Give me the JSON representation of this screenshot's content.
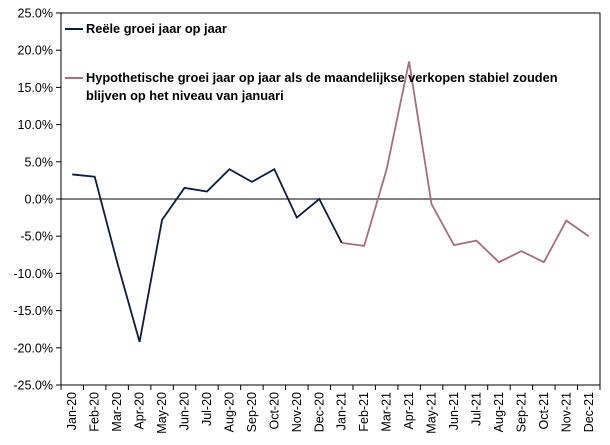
{
  "chart_data": {
    "type": "line",
    "categories": [
      "Jan-20",
      "Feb-20",
      "Mar-20",
      "Apr-20",
      "May-20",
      "Jun-20",
      "Jul-20",
      "Aug-20",
      "Sep-20",
      "Oct-20",
      "Nov-20",
      "Dec-20",
      "Jan-21",
      "Feb-21",
      "Mar-21",
      "Apr-21",
      "May-21",
      "Jun-21",
      "Jul-21",
      "Aug-21",
      "Sep-21",
      "Oct-21",
      "Nov-21",
      "Dec-21"
    ],
    "y_ticks": [
      "25.0%",
      "20.0%",
      "15.0%",
      "10.0%",
      "5.0%",
      "0.0%",
      "-5.0%",
      "-10.0%",
      "-15.0%",
      "-20.0%",
      "-25.0%"
    ],
    "ylim": [
      -25,
      25
    ],
    "grid": false,
    "legend_position": "top-left",
    "series": [
      {
        "name": "Reële groei jaar op jaar",
        "color": "#0d1b3d",
        "values": [
          3.3,
          3.0,
          -8.5,
          -19.2,
          -2.8,
          1.5,
          1.0,
          4.0,
          2.3,
          4.0,
          -2.5,
          0.0,
          -5.9,
          null,
          null,
          null,
          null,
          null,
          null,
          null,
          null,
          null,
          null,
          null
        ]
      },
      {
        "name": "Hypothetische groei jaar op jaar als de maandelijkse verkopen stabiel zouden blijven op het niveau van januari",
        "legend_lines": [
          "Hypothetische groei jaar op jaar als de maandelijkse verkopen stabiel zouden",
          "blijven op het niveau van januari"
        ],
        "color": "#a3707a",
        "values": [
          null,
          null,
          null,
          null,
          null,
          null,
          null,
          null,
          null,
          null,
          null,
          null,
          -5.9,
          -6.3,
          4.0,
          18.5,
          -0.7,
          -6.2,
          -5.6,
          -8.5,
          -7.0,
          -8.5,
          -2.9,
          -5.0
        ]
      }
    ]
  }
}
